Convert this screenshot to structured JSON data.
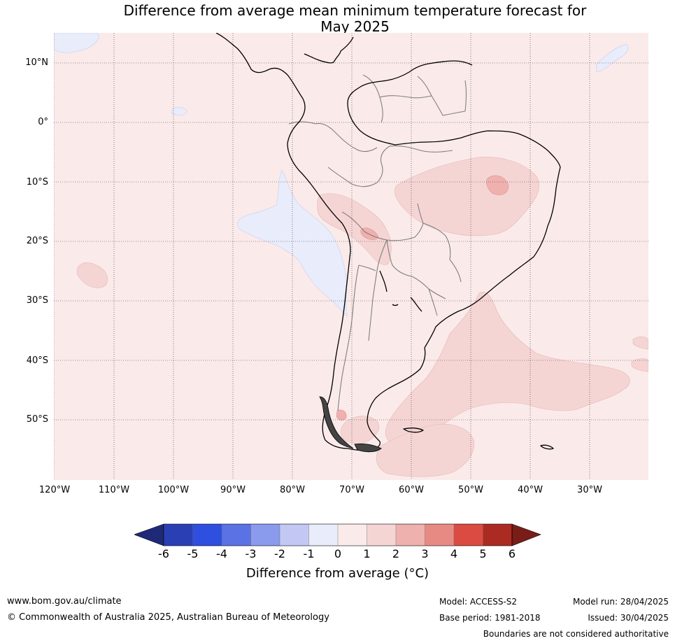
{
  "title": {
    "line1": "Difference from average mean minimum temperature forecast for",
    "line2": "May 2025"
  },
  "map": {
    "lat_labels": [
      "10°N",
      "0°",
      "10°S",
      "20°S",
      "30°S",
      "40°S",
      "50°S"
    ],
    "lon_labels": [
      "120°W",
      "110°W",
      "100°W",
      "90°W",
      "80°W",
      "70°W",
      "60°W",
      "50°W",
      "40°W",
      "30°W"
    ],
    "base_anomaly_class": "0 to 1",
    "colors": {
      "ocean_base": "#fbeaea",
      "anomaly_0_to_1": "#fbeaea",
      "anomaly_1_to_2": "#f5d5d4",
      "anomaly_2_to_3": "#eeb1ae",
      "anomaly_neg1_to_0": "#e8ecfb",
      "coastline": "#000000",
      "borders": "#7f7f7f",
      "gridlines": "#333333"
    }
  },
  "colorbar": {
    "tick_labels": [
      "-6",
      "-5",
      "-4",
      "-3",
      "-2",
      "-1",
      "0",
      "1",
      "2",
      "3",
      "4",
      "5",
      "6"
    ],
    "colors": [
      "#1e2a78",
      "#2b3fb4",
      "#2f4fe0",
      "#5b72e4",
      "#8a9aec",
      "#c2c8f3",
      "#e8ecfb",
      "#fbeaea",
      "#f5d5d4",
      "#eeb1ae",
      "#e88a84",
      "#dc4b41",
      "#ab2b22",
      "#7a1d18"
    ],
    "label": "Difference from average (°C)"
  },
  "footer": {
    "url": "www.bom.gov.au/climate",
    "copyright": "© Commonwealth of Australia 2025, Australian Bureau of Meteorology",
    "model": "Model: ACCESS-S2",
    "base_period": "Base period: 1981-2018",
    "model_run": "Model run: 28/04/2025",
    "issued": "Issued: 30/04/2025",
    "disclaimer": "Boundaries are not considered authoritative"
  }
}
